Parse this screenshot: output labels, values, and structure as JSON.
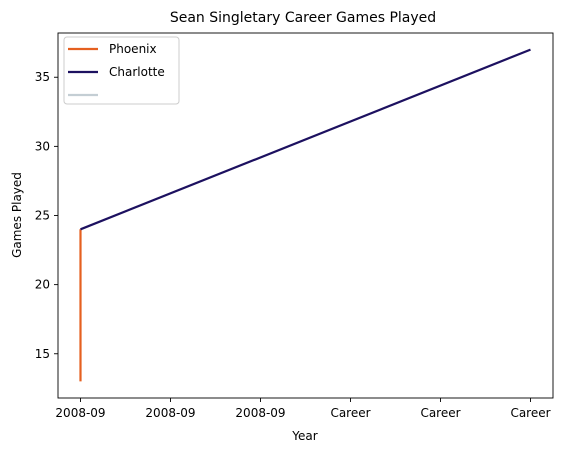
{
  "chart_data": {
    "type": "line",
    "title": "Sean Singletary Career Games Played",
    "xlabel": "Year",
    "ylabel": "Games Played",
    "x_tick_labels": [
      "2008-09",
      "2008-09",
      "2008-09",
      "Career",
      "Career",
      "Career"
    ],
    "y_ticks": [
      15,
      20,
      25,
      30,
      35
    ],
    "ylim": [
      11.8,
      38.2
    ],
    "grid": false,
    "legend_position": "top-left",
    "series": [
      {
        "name": "Phoenix",
        "color": "#E56020",
        "points": [
          {
            "x": 0,
            "y": 13
          },
          {
            "x": 0,
            "y": 24
          }
        ]
      },
      {
        "name": "Charlotte",
        "color": "#1D1160",
        "points": [
          {
            "x": 0,
            "y": 24
          },
          {
            "x": 5,
            "y": 37
          }
        ]
      },
      {
        "name": "",
        "color": "#C4CED4",
        "points": []
      }
    ]
  }
}
